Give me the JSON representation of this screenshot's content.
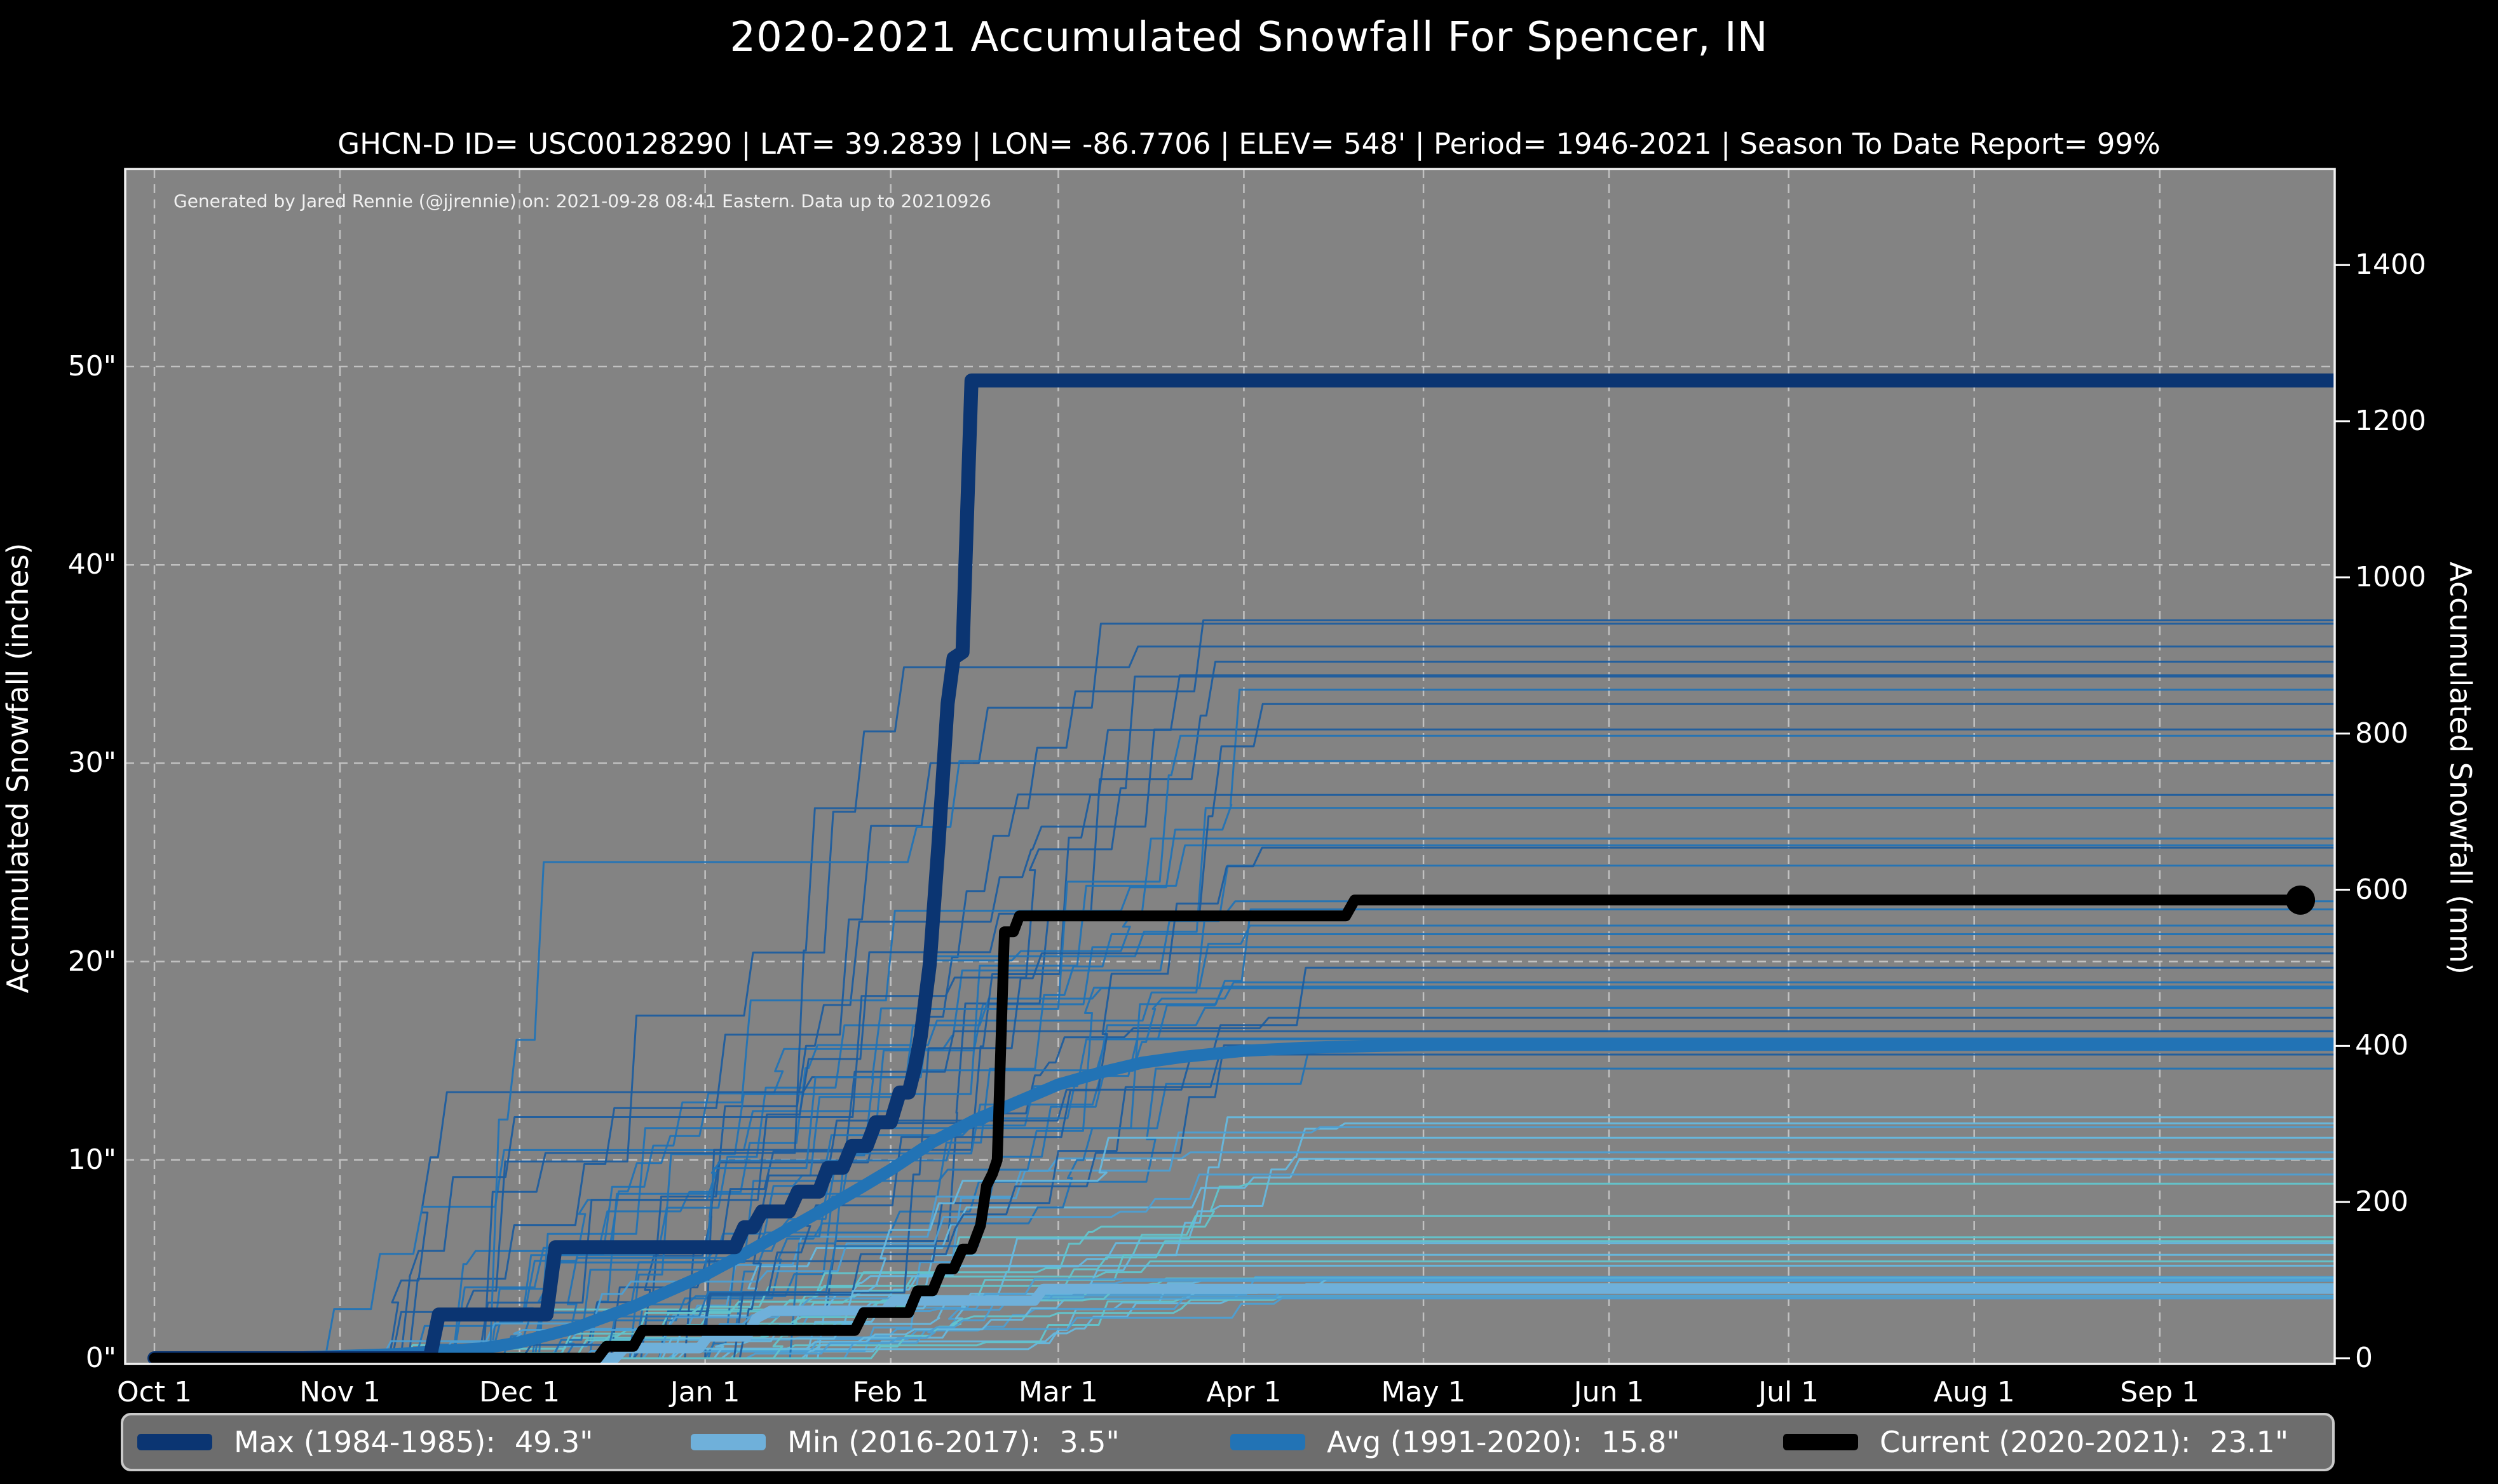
{
  "page": {
    "title": "2020-2021 Accumulated Snowfall For Spencer, IN",
    "subtitle": "GHCN-D ID= USC00128290 | LAT= 39.2839 | LON= -86.7706 | ELEV= 548' | Period= 1946-2021 | Season To Date Report= 99%",
    "annotation": "Generated by Jared Rennie (@jjrennie) on: 2021-09-28 08:41 Eastern. Data up to 20210926"
  },
  "colors": {
    "figure_bg": "#000000",
    "plot_bg": "#838383",
    "grid": "#cccccc",
    "spine": "#f2f2f2",
    "text": "#ffffff",
    "max_line": "#0b3572",
    "min_line": "#6fb0da",
    "avg_line": "#2273b5",
    "current_line": "#000000",
    "legend_bg": "#6d6d6d",
    "legend_border": "#c9c9c9"
  },
  "legend": {
    "entries": [
      {
        "label": "Max (1984-1985):",
        "value": "49.3\"",
        "color": "#0b3572"
      },
      {
        "label": "Min (2016-2017):",
        "value": "3.5\"",
        "color": "#6fb0da"
      },
      {
        "label": "Avg (1991-2020):",
        "value": "15.8\"",
        "color": "#2273b5"
      },
      {
        "label": "Current (2020-2021):",
        "value": "23.1\"",
        "color": "#000000"
      }
    ],
    "item_offsets": [
      22,
      893,
      1742,
      2612
    ]
  },
  "chart_data": {
    "type": "line",
    "title": "2020-2021 Accumulated Snowfall For Spencer, IN",
    "x_axis": {
      "tick_labels": [
        "Oct 1",
        "Nov 1",
        "Dec 1",
        "Jan 1",
        "Feb 1",
        "Mar 1",
        "Apr 1",
        "May 1",
        "Jun 1",
        "Jul 1",
        "Aug 1",
        "Sep 1"
      ],
      "tick_days": [
        0,
        31,
        61,
        92,
        123,
        151,
        182,
        212,
        243,
        273,
        304,
        335
      ],
      "domain_days": [
        -5,
        364.5
      ]
    },
    "y_left": {
      "label": "Accumulated Snowfall (inches)",
      "ticks": [
        0,
        10,
        20,
        30,
        40,
        50
      ],
      "tick_suffix": "\"",
      "range_inches": [
        0,
        60
      ]
    },
    "y_right": {
      "label": "Accumulated Snowfall (mm)",
      "ticks": [
        0,
        200,
        400,
        600,
        800,
        1000,
        1200,
        1400
      ],
      "range_mm": [
        0,
        1524
      ]
    },
    "grid": {
      "dashed": true,
      "horizontal_at_inches": [
        10,
        20,
        30,
        40,
        50
      ],
      "vertical_at_month_ticks": true
    },
    "series": [
      {
        "key": "min",
        "name": "Min (2016-2017)",
        "final_inches": 3.5,
        "color": "#6fb0da",
        "width": 16,
        "points": [
          [
            0,
            0
          ],
          [
            77,
            0
          ],
          [
            78.5,
            0.5
          ],
          [
            91,
            0.5
          ],
          [
            92.5,
            1.1
          ],
          [
            99,
            1.1
          ],
          [
            100.5,
            2.0
          ],
          [
            103,
            2.4
          ],
          [
            122,
            2.4
          ],
          [
            123.5,
            2.9
          ],
          [
            147,
            2.9
          ],
          [
            148.5,
            3.5
          ],
          [
            364,
            3.5
          ]
        ]
      },
      {
        "key": "avg",
        "name": "Avg (1991-2020)",
        "final_inches": 15.8,
        "color": "#2273b5",
        "width": 19,
        "points": [
          [
            0,
            0
          ],
          [
            25,
            0.05
          ],
          [
            40,
            0.2
          ],
          [
            55,
            0.5
          ],
          [
            61,
            0.8
          ],
          [
            70,
            1.5
          ],
          [
            80,
            2.6
          ],
          [
            92,
            4.2
          ],
          [
            100,
            5.5
          ],
          [
            110,
            7.2
          ],
          [
            118,
            8.6
          ],
          [
            123,
            9.5
          ],
          [
            130,
            10.9
          ],
          [
            137,
            12.0
          ],
          [
            144,
            12.9
          ],
          [
            151,
            13.8
          ],
          [
            158,
            14.4
          ],
          [
            165,
            14.9
          ],
          [
            172,
            15.2
          ],
          [
            182,
            15.5
          ],
          [
            192,
            15.65
          ],
          [
            205,
            15.75
          ],
          [
            215,
            15.8
          ],
          [
            364,
            15.8
          ]
        ]
      },
      {
        "key": "max",
        "name": "Max (1984-1985)",
        "final_inches": 49.3,
        "color": "#0b3572",
        "width": 22,
        "points": [
          [
            0,
            0
          ],
          [
            46,
            0
          ],
          [
            47.5,
            2.2
          ],
          [
            65.5,
            2.2
          ],
          [
            67,
            5.6
          ],
          [
            97,
            5.6
          ],
          [
            98.5,
            6.6
          ],
          [
            100,
            6.6
          ],
          [
            101.5,
            7.4
          ],
          [
            106,
            7.4
          ],
          [
            107.5,
            8.4
          ],
          [
            111,
            8.4
          ],
          [
            112.5,
            9.6
          ],
          [
            115,
            9.6
          ],
          [
            116.5,
            10.7
          ],
          [
            119,
            10.7
          ],
          [
            120.5,
            11.9
          ],
          [
            123,
            11.9
          ],
          [
            124.5,
            13.4
          ],
          [
            126,
            13.4
          ],
          [
            127,
            14.6
          ],
          [
            128,
            16.2
          ],
          [
            129.5,
            19.8
          ],
          [
            131,
            26.0
          ],
          [
            132.5,
            33.0
          ],
          [
            133.5,
            35.3
          ],
          [
            135,
            35.6
          ],
          [
            136.5,
            49.3
          ],
          [
            364,
            49.3
          ]
        ]
      },
      {
        "key": "current",
        "name": "Current (2020-2021)",
        "final_inches": 23.1,
        "color": "#000000",
        "width": 17,
        "points": [
          [
            0,
            0
          ],
          [
            74,
            0
          ],
          [
            75.5,
            0.6
          ],
          [
            80,
            0.6
          ],
          [
            81.5,
            1.4
          ],
          [
            117,
            1.4
          ],
          [
            118.5,
            2.3
          ],
          [
            126,
            2.3
          ],
          [
            127.5,
            3.4
          ],
          [
            130,
            3.4
          ],
          [
            131.5,
            4.5
          ],
          [
            133.5,
            4.5
          ],
          [
            135,
            5.5
          ],
          [
            136.5,
            5.5
          ],
          [
            138,
            6.7
          ],
          [
            139,
            8.7
          ],
          [
            140,
            9.3
          ],
          [
            140.8,
            10.0
          ],
          [
            142,
            21.5
          ],
          [
            143.5,
            21.5
          ],
          [
            144.5,
            22.3
          ],
          [
            199,
            22.3
          ],
          [
            200.5,
            23.1
          ],
          [
            358.5,
            23.1
          ]
        ]
      }
    ],
    "end_marker": {
      "series": "current",
      "day": 358.5,
      "value_inches": 23.1,
      "radius": 23,
      "color": "#000000"
    },
    "background_series": {
      "note": "thin lines: each snowfall season 1946-2021",
      "count": 66,
      "seed": 20210926,
      "width": 3,
      "palette_high": [
        "#1d5d9e",
        "#2273b5"
      ],
      "palette_low": [
        "#4d9fd3",
        "#66b8de",
        "#62c4cc"
      ],
      "final_inches_range": [
        3,
        38
      ],
      "snow_day_window": [
        25,
        200
      ]
    }
  }
}
